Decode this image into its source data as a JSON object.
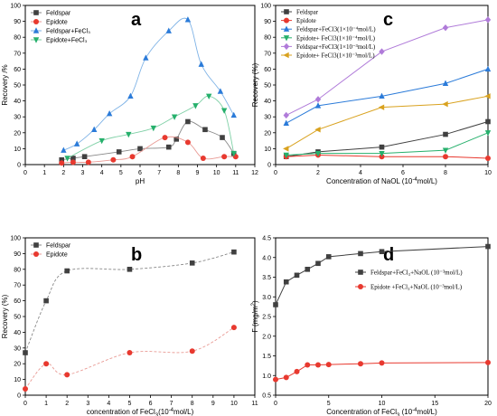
{
  "chart_data": [
    {
      "id": "a",
      "type": "scatter",
      "panel_label": "a",
      "xlabel": "pH",
      "ylabel": "Recovery /%",
      "xlim": [
        0,
        12
      ],
      "ylim": [
        0,
        100
      ],
      "xticks": [
        0,
        1,
        2,
        3,
        4,
        5,
        6,
        7,
        8,
        9,
        10,
        11,
        12
      ],
      "yticks": [
        0,
        10,
        20,
        30,
        40,
        50,
        60,
        70,
        80,
        90,
        100
      ],
      "legend_position": "top-left",
      "series": [
        {
          "name": "Feldspar",
          "color": "#404040",
          "marker": "square",
          "line_color": "#888888",
          "x": [
            1.9,
            2.5,
            3.1,
            4.9,
            6.0,
            7.5,
            7.9,
            8.5,
            9.4,
            10.3,
            10.9
          ],
          "y": [
            3,
            4,
            5,
            8,
            10,
            11,
            16,
            27,
            22,
            17,
            7
          ]
        },
        {
          "name": "Epidote",
          "color": "#e8392f",
          "marker": "circle",
          "line_color": "#e99a94",
          "x": [
            1.9,
            2.5,
            3.3,
            4.6,
            5.6,
            7.3,
            8.5,
            9.3,
            10.4,
            11.0
          ],
          "y": [
            1,
            1.5,
            1.5,
            3,
            5,
            17,
            14,
            4,
            5,
            5
          ]
        },
        {
          "name": "Feldspar+FeCl₃",
          "color": "#2b7bd9",
          "marker": "triangle-up",
          "line_color": "#7fb3e6",
          "x": [
            2.0,
            2.7,
            3.6,
            4.4,
            5.5,
            6.3,
            7.5,
            8.5,
            9.2,
            10.2,
            10.9
          ],
          "y": [
            9,
            13,
            22,
            32,
            43,
            67,
            84,
            91,
            63,
            46,
            31
          ]
        },
        {
          "name": "Epidote+FeCl₃",
          "color": "#26b06c",
          "marker": "triangle-down",
          "line_color": "#7fd0a6",
          "x": [
            2.2,
            4.0,
            5.4,
            6.7,
            7.8,
            8.9,
            9.6,
            10.4,
            10.9
          ],
          "y": [
            4,
            15,
            19,
            23,
            30,
            37,
            43,
            34,
            7
          ]
        }
      ]
    },
    {
      "id": "b",
      "type": "scatter",
      "panel_label": "b",
      "xlabel": "concentration of FeCl",
      "xlabel_sub": "3",
      "xlabel_tail": "(10",
      "xlabel_sup": "-4",
      "xlabel_end": "mol/L)",
      "ylabel": "Recovery (%)",
      "xlim": [
        0,
        11
      ],
      "ylim": [
        0,
        100
      ],
      "xticks": [
        0,
        1,
        2,
        3,
        4,
        5,
        6,
        7,
        8,
        9,
        10,
        11
      ],
      "yticks": [
        0,
        10,
        20,
        30,
        40,
        50,
        60,
        70,
        80,
        90,
        100
      ],
      "legend_position": "top-left",
      "series": [
        {
          "name": "Feldspar",
          "color": "#404040",
          "marker": "square",
          "line_color": "#888888",
          "x": [
            0,
            1,
            2,
            5,
            8,
            10
          ],
          "y": [
            27,
            60,
            79,
            80,
            84,
            91
          ]
        },
        {
          "name": "Epidote",
          "color": "#e8392f",
          "marker": "circle",
          "line_color": "#e99a94",
          "x": [
            0,
            1,
            2,
            5,
            8,
            10
          ],
          "y": [
            4,
            20,
            13,
            27,
            28,
            43
          ]
        }
      ]
    },
    {
      "id": "c",
      "type": "line",
      "panel_label": "c",
      "xlabel": "Concentration of  NaOL (10",
      "xlabel_sup": "-4",
      "xlabel_end": "mol/L)",
      "ylabel": "Recovery (%)",
      "xlim": [
        0,
        10
      ],
      "ylim": [
        0,
        100
      ],
      "xticks": [
        0,
        2,
        4,
        6,
        8,
        10
      ],
      "yticks": [
        0,
        10,
        20,
        30,
        40,
        50,
        60,
        70,
        80,
        90,
        100
      ],
      "legend_position": "top-left",
      "series": [
        {
          "name": "Feldspar",
          "color": "#404040",
          "marker": "square",
          "x": [
            0.5,
            2,
            5,
            8,
            10
          ],
          "y": [
            5,
            8,
            11,
            19,
            27
          ]
        },
        {
          "name": "Epidote",
          "color": "#e8392f",
          "marker": "circle",
          "x": [
            0.5,
            2,
            5,
            8,
            10
          ],
          "y": [
            5,
            6,
            5,
            5,
            4
          ]
        },
        {
          "name": "Feldspar+FeCl3(1×10⁻⁴mol/L)",
          "color": "#2b7bd9",
          "marker": "triangle-up",
          "x": [
            0.5,
            2,
            5,
            8,
            10
          ],
          "y": [
            26,
            37,
            43,
            51,
            60
          ]
        },
        {
          "name": "Epidote+ FeCl3(1×10⁻⁴mol/L)",
          "color": "#26b06c",
          "marker": "triangle-down",
          "x": [
            0.5,
            2,
            5,
            8,
            10
          ],
          "y": [
            6,
            7,
            7,
            9,
            20
          ]
        },
        {
          "name": "Feldspar+FeCl3(1×10⁻³mol/L)",
          "color": "#b07bd9",
          "marker": "diamond",
          "x": [
            0.5,
            2,
            5,
            8,
            10
          ],
          "y": [
            31,
            41,
            71,
            86,
            91
          ]
        },
        {
          "name": "Epidote+ FeCl3(1×10⁻³mol/L)",
          "color": "#d9a21f",
          "marker": "triangle-left",
          "x": [
            0.5,
            2,
            5,
            8,
            10
          ],
          "y": [
            10,
            22,
            36,
            38,
            43
          ]
        }
      ]
    },
    {
      "id": "d",
      "type": "line",
      "panel_label": "d",
      "xlabel": "Concentration of  FeCl",
      "xlabel_sub": "3",
      "xlabel_tail": " (10",
      "xlabel_sup": "-4",
      "xlabel_end": "mol/L)",
      "ylabel": "Γ  (mg/m",
      "ylabel_sup": "2",
      "ylabel_end": ")",
      "xlim": [
        0,
        20
      ],
      "ylim": [
        0.5,
        4.5
      ],
      "xticks": [
        0,
        5,
        10,
        15,
        20
      ],
      "yticks": [
        0.5,
        1.0,
        1.5,
        2.0,
        2.5,
        3.0,
        3.5,
        4.0,
        4.5
      ],
      "legend_position": "center-right",
      "series": [
        {
          "name": "Feldspar+FeCl₃+NaOL (10⁻³mol/L)",
          "color": "#404040",
          "marker": "square",
          "x": [
            0,
            1,
            2,
            3,
            4,
            5,
            8,
            10,
            20
          ],
          "y": [
            2.8,
            3.38,
            3.55,
            3.7,
            3.85,
            4.02,
            4.1,
            4.15,
            4.28
          ]
        },
        {
          "name": "Epidote +FeCl₃+NaOL (10⁻³mol/L)",
          "color": "#e8392f",
          "marker": "circle",
          "x": [
            0,
            1,
            2,
            3,
            4,
            5,
            8,
            10,
            20
          ],
          "y": [
            0.9,
            0.95,
            1.1,
            1.27,
            1.27,
            1.28,
            1.3,
            1.32,
            1.33
          ]
        }
      ]
    }
  ]
}
